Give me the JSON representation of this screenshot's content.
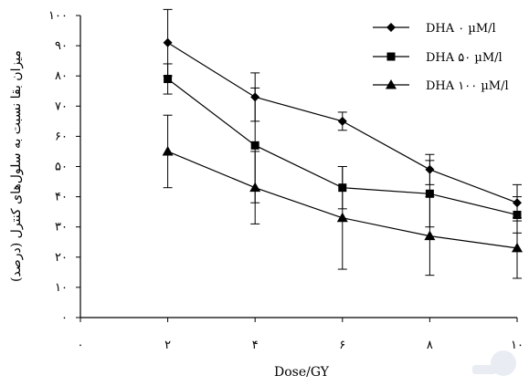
{
  "chart_data": {
    "type": "line",
    "xlabel": "Dose/GY",
    "ylabel": "میزان بقا نسبت به سلول‌های کنترل (درصد)",
    "x_ticks": [
      "۰",
      "۲",
      "۴",
      "۶",
      "۸",
      "۱۰"
    ],
    "x_tick_values": [
      0,
      2,
      4,
      6,
      8,
      10
    ],
    "y_ticks": [
      "۰",
      "۱۰",
      "۲۰",
      "۳۰",
      "۴۰",
      "۵۰",
      "۶۰",
      "۷۰",
      "۸۰",
      "۹۰",
      "۱۰۰"
    ],
    "y_tick_values": [
      0,
      10,
      20,
      30,
      40,
      50,
      60,
      70,
      80,
      90,
      100
    ],
    "xlim": [
      0,
      10
    ],
    "ylim": [
      0,
      100
    ],
    "grid": false,
    "legend_position": "top-right",
    "x": [
      2,
      4,
      6,
      8,
      10
    ],
    "series": [
      {
        "name": "DHA ۰ µM/l",
        "marker": "diamond",
        "values": [
          91,
          73,
          65,
          49,
          38
        ],
        "errors": [
          11,
          8,
          3,
          5,
          6
        ]
      },
      {
        "name": "DHA ۵۰ µM/l",
        "marker": "square",
        "values": [
          79,
          57,
          43,
          41,
          34
        ],
        "errors": [
          5,
          19,
          7,
          11,
          6
        ]
      },
      {
        "name": "DHA ۱۰۰ µM/l",
        "marker": "triangle",
        "values": [
          55,
          43,
          33,
          27,
          23
        ],
        "errors": [
          12,
          12,
          17,
          13,
          10
        ]
      }
    ]
  }
}
